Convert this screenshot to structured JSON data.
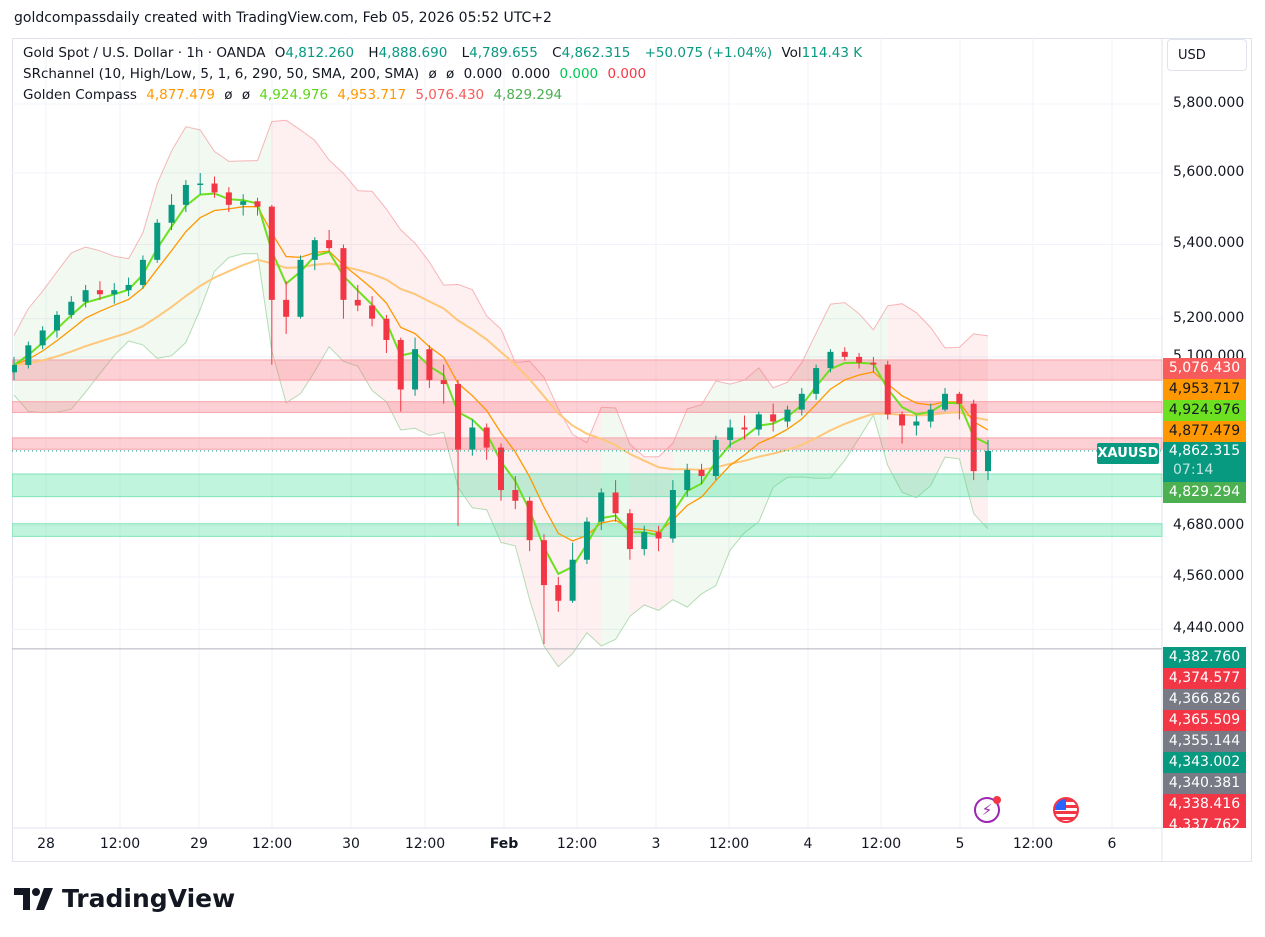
{
  "credit": "goldcompassdaily created with TradingView.com, Feb 05, 2026 05:52 UTC+2",
  "legend": {
    "symbol": "Gold Spot / U.S. Dollar · 1h · OANDA",
    "o_label": "O",
    "o": "4,812.260",
    "h_label": "H",
    "h": "4,888.690",
    "l_label": "L",
    "l": "4,789.655",
    "c_label": "C",
    "c": "4,862.315",
    "change": "+50.075 (+1.04%)",
    "vol_label": "Vol",
    "vol": "114.43 K",
    "sr_name": "SRchannel (10, High/Low, 5, 1, 6, 290, 50, SMA, 200, SMA)",
    "sr_values": [
      "ø",
      "ø",
      "0.000",
      "0.000",
      "0.000",
      "0.000"
    ],
    "gc_name": "Golden Compass",
    "gc_values": [
      "4,877.479",
      "ø",
      "ø",
      "4,924.976",
      "4,953.717",
      "5,076.430",
      "4,829.294"
    ]
  },
  "currency": "USD",
  "symbol_tag": "XAUUSD",
  "countdown": "07:14",
  "colors": {
    "up": "#089981",
    "down": "#f23645",
    "fast": "#6ce021",
    "mid": "#ff9800",
    "slow": "#ffc77a",
    "sr_red": "#f7a0a8",
    "sr_green": "#7fe3b8"
  },
  "price_labels": [
    {
      "text": "5,076.430",
      "bg": "#f75b5b",
      "fg": "#ffffff"
    },
    {
      "text": "4,953.717",
      "bg": "#ff9800",
      "fg": "#131722"
    },
    {
      "text": "4,924.976",
      "bg": "#6ce021",
      "fg": "#131722"
    },
    {
      "text": "4,877.479",
      "bg": "#ff9800",
      "fg": "#131722"
    },
    {
      "text": "4,862.315",
      "bg": "#089981",
      "fg": "#ffffff"
    },
    {
      "text": "4,829.294",
      "bg": "#4caf50",
      "fg": "#ffffff"
    },
    {
      "text": "4,382.760",
      "bg": "#089981",
      "fg": "#ffffff"
    },
    {
      "text": "4,374.577",
      "bg": "#f23645",
      "fg": "#ffffff"
    },
    {
      "text": "4,366.826",
      "bg": "#787b86",
      "fg": "#ffffff"
    },
    {
      "text": "4,365.509",
      "bg": "#f23645",
      "fg": "#ffffff"
    },
    {
      "text": "4,355.144",
      "bg": "#787b86",
      "fg": "#ffffff"
    },
    {
      "text": "4,343.002",
      "bg": "#089981",
      "fg": "#ffffff"
    },
    {
      "text": "4,340.381",
      "bg": "#787b86",
      "fg": "#ffffff"
    },
    {
      "text": "4,338.416",
      "bg": "#f23645",
      "fg": "#ffffff"
    },
    {
      "text": "4,337.762",
      "bg": "#f23645",
      "fg": "#ffffff"
    }
  ],
  "brand": "TradingView",
  "icons": [
    "lightning-event-icon",
    "us-flag-icon"
  ],
  "chart_data": {
    "type": "candlestick",
    "scale": "log",
    "grid": true,
    "ylim": [
      4300,
      5900
    ],
    "y_ticks": [
      "5,800.000",
      "5,600.000",
      "5,400.000",
      "5,200.000",
      "5,100.000",
      "4,680.000",
      "4,560.000",
      "4,440.000"
    ],
    "y_tick_values": [
      5800,
      5600,
      5400,
      5200,
      5100,
      4680,
      4560,
      4440
    ],
    "x_ticks": [
      "28",
      "12:00",
      "29",
      "12:00",
      "30",
      "12:00",
      "Feb",
      "12:00",
      "3",
      "12:00",
      "4",
      "12:00",
      "5",
      "12:00",
      "6"
    ],
    "candles": [
      [
        5060,
        5100,
        5040,
        5079
      ],
      [
        5079,
        5140,
        5070,
        5130
      ],
      [
        5130,
        5180,
        5120,
        5169
      ],
      [
        5169,
        5220,
        5150,
        5210
      ],
      [
        5210,
        5260,
        5200,
        5245
      ],
      [
        5245,
        5290,
        5230,
        5276
      ],
      [
        5276,
        5300,
        5250,
        5265
      ],
      [
        5265,
        5295,
        5240,
        5276
      ],
      [
        5276,
        5310,
        5260,
        5290
      ],
      [
        5290,
        5370,
        5280,
        5358
      ],
      [
        5358,
        5470,
        5350,
        5460
      ],
      [
        5460,
        5540,
        5440,
        5510
      ],
      [
        5510,
        5580,
        5490,
        5566
      ],
      [
        5566,
        5600,
        5540,
        5570
      ],
      [
        5570,
        5590,
        5530,
        5545
      ],
      [
        5545,
        5560,
        5490,
        5510
      ],
      [
        5510,
        5540,
        5480,
        5520
      ],
      [
        5520,
        5530,
        5480,
        5505
      ],
      [
        5505,
        5510,
        5080,
        5250
      ],
      [
        5250,
        5300,
        5160,
        5205
      ],
      [
        5205,
        5370,
        5200,
        5358
      ],
      [
        5358,
        5420,
        5330,
        5412
      ],
      [
        5412,
        5440,
        5380,
        5390
      ],
      [
        5390,
        5400,
        5200,
        5250
      ],
      [
        5250,
        5290,
        5220,
        5235
      ],
      [
        5235,
        5260,
        5180,
        5200
      ],
      [
        5200,
        5210,
        5110,
        5144
      ],
      [
        5144,
        5150,
        4960,
        5016
      ],
      [
        5016,
        5150,
        5000,
        5120
      ],
      [
        5120,
        5130,
        5020,
        5040
      ],
      [
        5040,
        5080,
        4980,
        5030
      ],
      [
        5030,
        5040,
        4680,
        4865
      ],
      [
        4865,
        4940,
        4850,
        4920
      ],
      [
        4920,
        4930,
        4840,
        4870
      ],
      [
        4870,
        4880,
        4740,
        4766
      ],
      [
        4766,
        4800,
        4720,
        4740
      ],
      [
        4740,
        4750,
        4620,
        4646
      ],
      [
        4646,
        4660,
        4407,
        4541
      ],
      [
        4541,
        4560,
        4480,
        4505
      ],
      [
        4505,
        4640,
        4500,
        4600
      ],
      [
        4600,
        4700,
        4590,
        4690
      ],
      [
        4690,
        4770,
        4670,
        4760
      ],
      [
        4760,
        4790,
        4690,
        4710
      ],
      [
        4710,
        4720,
        4600,
        4625
      ],
      [
        4625,
        4680,
        4610,
        4665
      ],
      [
        4665,
        4680,
        4620,
        4650
      ],
      [
        4650,
        4790,
        4640,
        4766
      ],
      [
        4766,
        4830,
        4750,
        4815
      ],
      [
        4815,
        4830,
        4780,
        4800
      ],
      [
        4800,
        4900,
        4790,
        4889
      ],
      [
        4889,
        4940,
        4870,
        4920
      ],
      [
        4920,
        4950,
        4890,
        4915
      ],
      [
        4915,
        4960,
        4900,
        4953
      ],
      [
        4953,
        4980,
        4910,
        4935
      ],
      [
        4935,
        4975,
        4920,
        4965
      ],
      [
        4965,
        5020,
        4950,
        5005
      ],
      [
        5005,
        5080,
        4990,
        5071
      ],
      [
        5071,
        5120,
        5060,
        5113
      ],
      [
        5113,
        5125,
        5090,
        5100
      ],
      [
        5100,
        5110,
        5070,
        5085
      ],
      [
        5085,
        5100,
        5060,
        5080
      ],
      [
        5080,
        5090,
        4940,
        4953
      ],
      [
        4953,
        4960,
        4880,
        4925
      ],
      [
        4925,
        4950,
        4900,
        4935
      ],
      [
        4935,
        4980,
        4920,
        4965
      ],
      [
        4965,
        5020,
        4960,
        5005
      ],
      [
        5005,
        5010,
        4940,
        4980
      ],
      [
        4980,
        4990,
        4790,
        4812
      ],
      [
        4812,
        4889,
        4790,
        4862
      ]
    ],
    "sr_zones": [
      {
        "top": 5092,
        "bottom": 5040,
        "color": "red"
      },
      {
        "top": 4985,
        "bottom": 4958,
        "color": "red"
      },
      {
        "top": 4894,
        "bottom": 4866,
        "color": "red"
      },
      {
        "top": 4805,
        "bottom": 4750,
        "color": "green"
      },
      {
        "top": 4685,
        "bottom": 4655,
        "color": "green"
      }
    ],
    "horizontal_line": 4396
  }
}
